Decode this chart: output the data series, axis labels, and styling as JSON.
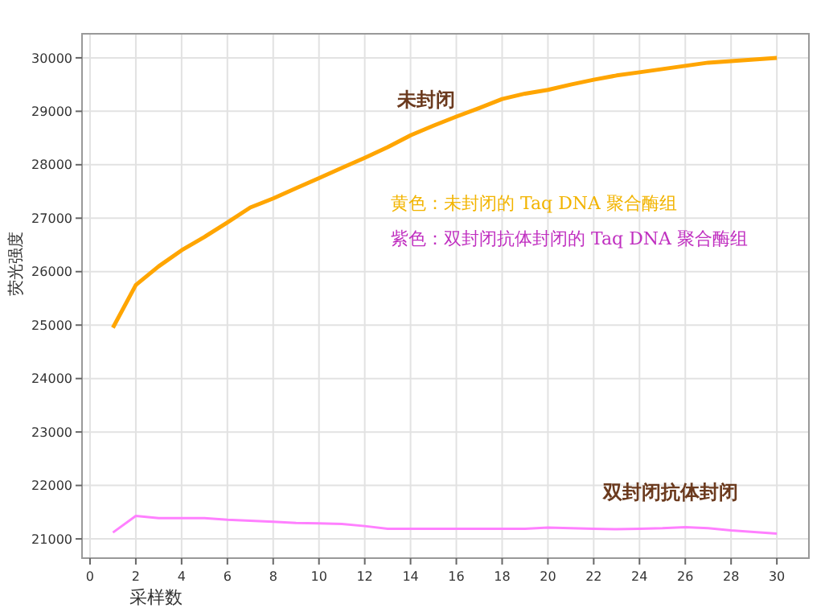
{
  "chart_data": {
    "type": "line",
    "xlabel": "采样数",
    "ylabel": "荧光强度",
    "x": [
      1,
      2,
      3,
      4,
      5,
      6,
      7,
      8,
      9,
      10,
      11,
      12,
      13,
      14,
      15,
      16,
      17,
      18,
      19,
      20,
      21,
      22,
      23,
      24,
      25,
      26,
      27,
      28,
      29,
      30
    ],
    "series": [
      {
        "name": "未封闭",
        "color": "#ffa500",
        "values": [
          24950,
          25750,
          26100,
          26400,
          26650,
          26920,
          27200,
          27370,
          27560,
          27750,
          27940,
          28130,
          28330,
          28550,
          28730,
          28900,
          29060,
          29230,
          29330,
          29400,
          29500,
          29590,
          29670,
          29730,
          29790,
          29850,
          29910,
          29940,
          29970,
          30000
        ]
      },
      {
        "name": "双封闭抗体封闭",
        "color": "#ff80ff",
        "values": [
          21120,
          21430,
          21390,
          21390,
          21390,
          21360,
          21340,
          21320,
          21300,
          21290,
          21280,
          21240,
          21190,
          21190,
          21190,
          21190,
          21190,
          21190,
          21190,
          21210,
          21200,
          21190,
          21180,
          21190,
          21200,
          21220,
          21200,
          21160,
          21130,
          21100
        ]
      }
    ],
    "annotations": [
      "黄色：未封闭的 Taq DNA 聚合酶组",
      "紫色：双封闭抗体封闭的 Taq DNA 聚合酶组"
    ],
    "xlim": [
      -0.35,
      31.4
    ],
    "ylim": [
      20640,
      30450
    ],
    "xticks": [
      0,
      2,
      4,
      6,
      8,
      10,
      12,
      14,
      16,
      18,
      20,
      22,
      24,
      26,
      28,
      30
    ],
    "yticks": [
      21000,
      22000,
      23000,
      24000,
      25000,
      26000,
      27000,
      28000,
      29000,
      30000
    ],
    "grid": true,
    "marker": "none",
    "line_style": "solid"
  }
}
